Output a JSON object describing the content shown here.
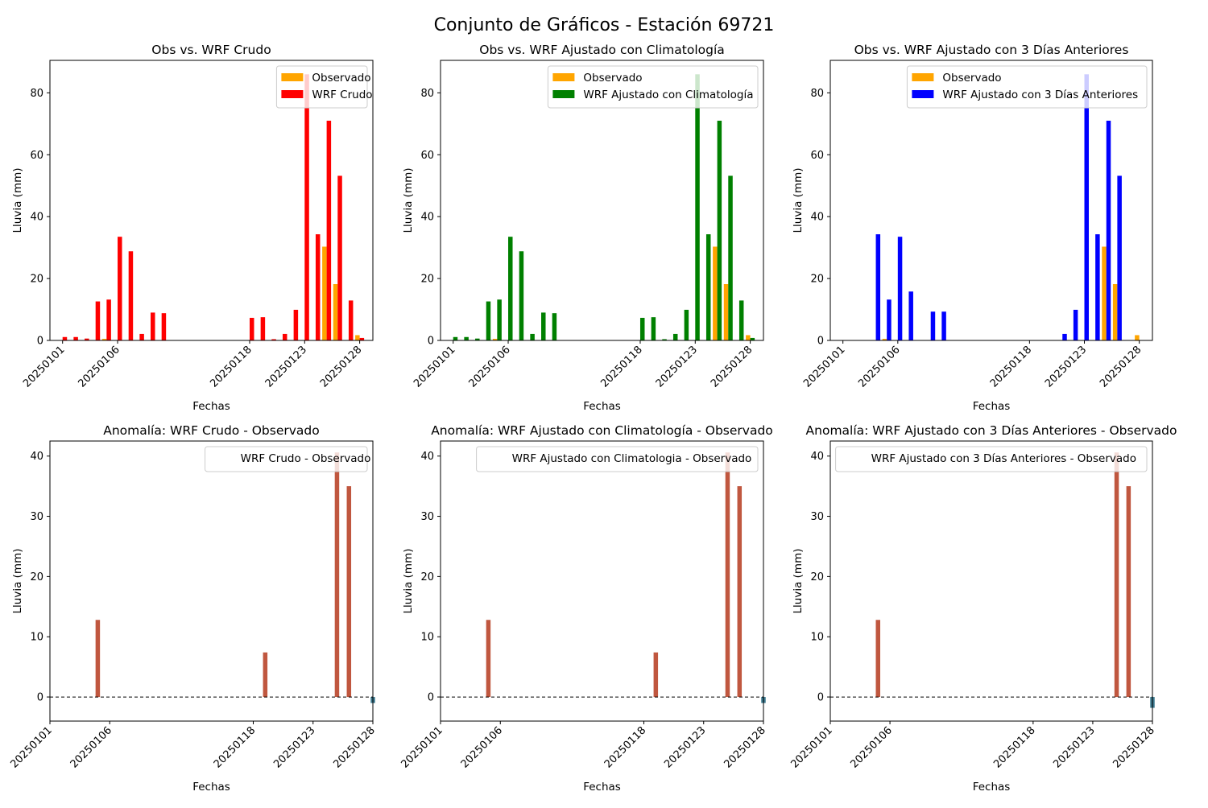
{
  "figure": {
    "title": "Conjunto de Gráficos - Estación 69721"
  },
  "colors": {
    "observado": "#ffa500",
    "wrf_crudo": "#ff0000",
    "wrf_clim": "#008000",
    "wrf_3dias": "#0000ff",
    "anom_pos": "#c0573f",
    "anom_neg": "#3d7a8f",
    "zero_line": "#000000"
  },
  "chart_data": [
    {
      "type": "bar",
      "panel": "top-left",
      "title": "Obs vs. WRF Crudo",
      "xlabel": "Fechas",
      "ylabel": "Lluvia (mm)",
      "x": [
        "20250101",
        "20250102",
        "20250103",
        "20250104",
        "20250105",
        "20250106",
        "20250107",
        "20250108",
        "20250109",
        "20250110",
        "20250118",
        "20250119",
        "20250120",
        "20250121",
        "20250122",
        "20250123",
        "20250124",
        "20250125",
        "20250126",
        "20250127",
        "20250128"
      ],
      "xticks": [
        "20250101",
        "20250106",
        "20250118",
        "20250123",
        "20250128"
      ],
      "yticks": [
        0,
        20,
        40,
        60,
        80
      ],
      "ylim": [
        0,
        90.5
      ],
      "legend": "top-right",
      "series": [
        {
          "name": "Observado",
          "color_key": "observado",
          "values": [
            0,
            0,
            0,
            0,
            0.5,
            0,
            0,
            0,
            0,
            0,
            0,
            0,
            0,
            0,
            0,
            0,
            0,
            30.3,
            18.2,
            0,
            1.7
          ]
        },
        {
          "name": "WRF Crudo",
          "color_key": "wrf_crudo",
          "values": [
            1.1,
            1.1,
            0.6,
            12.6,
            13.2,
            33.5,
            28.8,
            2.1,
            9.0,
            8.8,
            7.3,
            7.5,
            0.4,
            2.1,
            9.9,
            86.0,
            34.3,
            71.0,
            53.2,
            12.9,
            0.8
          ]
        }
      ]
    },
    {
      "type": "bar",
      "panel": "top-middle",
      "title": "Obs vs. WRF Ajustado con Climatología",
      "xlabel": "Fechas",
      "ylabel": "Lluvia (mm)",
      "x": [
        "20250101",
        "20250102",
        "20250103",
        "20250104",
        "20250105",
        "20250106",
        "20250107",
        "20250108",
        "20250109",
        "20250110",
        "20250118",
        "20250119",
        "20250120",
        "20250121",
        "20250122",
        "20250123",
        "20250124",
        "20250125",
        "20250126",
        "20250127",
        "20250128"
      ],
      "xticks": [
        "20250101",
        "20250106",
        "20250118",
        "20250123",
        "20250128"
      ],
      "yticks": [
        0,
        20,
        40,
        60,
        80
      ],
      "ylim": [
        0,
        90.5
      ],
      "legend": "top-right",
      "series": [
        {
          "name": "Observado",
          "color_key": "observado",
          "values": [
            0,
            0,
            0,
            0,
            0.5,
            0,
            0,
            0,
            0,
            0,
            0,
            0,
            0,
            0,
            0,
            0,
            0,
            30.3,
            18.2,
            0,
            1.7
          ]
        },
        {
          "name": "WRF Ajustado con Climatología",
          "color_key": "wrf_clim",
          "values": [
            1.1,
            1.1,
            0.6,
            12.6,
            13.2,
            33.5,
            28.8,
            2.1,
            9.0,
            8.8,
            7.3,
            7.5,
            0.4,
            2.1,
            9.9,
            86.0,
            34.3,
            71.0,
            53.2,
            12.9,
            0.8
          ]
        }
      ]
    },
    {
      "type": "bar",
      "panel": "top-right",
      "title": "Obs vs. WRF Ajustado con 3 Días Anteriores",
      "xlabel": "Fechas",
      "ylabel": "Lluvia (mm)",
      "x": [
        "20250101",
        "20250102",
        "20250103",
        "20250104",
        "20250105",
        "20250106",
        "20250107",
        "20250108",
        "20250109",
        "20250110",
        "20250118",
        "20250119",
        "20250120",
        "20250121",
        "20250122",
        "20250123",
        "20250124",
        "20250125",
        "20250126",
        "20250127",
        "20250128"
      ],
      "xticks": [
        "20250101",
        "20250106",
        "20250118",
        "20250123",
        "20250128"
      ],
      "yticks": [
        0,
        20,
        40,
        60,
        80
      ],
      "ylim": [
        0,
        90.5
      ],
      "legend": "top-right",
      "series": [
        {
          "name": "Observado",
          "color_key": "observado",
          "values": [
            0,
            0,
            0,
            0,
            0.5,
            0,
            0,
            0,
            0,
            0,
            0,
            0,
            0,
            0,
            0,
            0,
            0,
            30.3,
            18.2,
            0,
            1.7
          ]
        },
        {
          "name": "WRF Ajustado con 3 Días Anteriores",
          "color_key": "wrf_3dias",
          "values": [
            0,
            0,
            0,
            34.3,
            13.2,
            33.5,
            15.8,
            0,
            9.3,
            9.3,
            0,
            0,
            0,
            2.1,
            9.9,
            86.0,
            34.3,
            71.0,
            53.2,
            0,
            0
          ]
        }
      ]
    },
    {
      "type": "bar",
      "panel": "bottom-left",
      "title": "Anomalía: WRF Crudo - Observado",
      "xlabel": "Fechas",
      "ylabel": "Lluvia (mm)",
      "x": [
        "20250101",
        "20250102",
        "20250103",
        "20250104",
        "20250105",
        "20250106",
        "20250107",
        "20250108",
        "20250109",
        "20250110",
        "20250118",
        "20250119",
        "20250120",
        "20250121",
        "20250122",
        "20250123",
        "20250124",
        "20250125",
        "20250126",
        "20250127",
        "20250128"
      ],
      "xticks": [
        "20250101",
        "20250106",
        "20250118",
        "20250123",
        "20250128"
      ],
      "yticks": [
        0,
        10,
        20,
        30,
        40
      ],
      "ylim": [
        -4,
        42.5
      ],
      "legend": "top-right",
      "reference_line": 0,
      "series": [
        {
          "name": "WRF Crudo - Observado",
          "values": [
            null,
            null,
            null,
            null,
            12.8,
            null,
            null,
            null,
            null,
            null,
            null,
            7.4,
            null,
            null,
            null,
            null,
            null,
            40.6,
            35.0,
            null,
            -1.0
          ]
        }
      ]
    },
    {
      "type": "bar",
      "panel": "bottom-middle",
      "title": "Anomalía: WRF Ajustado con Climatología - Observado",
      "xlabel": "Fechas",
      "ylabel": "Lluvia (mm)",
      "x": [
        "20250101",
        "20250102",
        "20250103",
        "20250104",
        "20250105",
        "20250106",
        "20250107",
        "20250108",
        "20250109",
        "20250110",
        "20250118",
        "20250119",
        "20250120",
        "20250121",
        "20250122",
        "20250123",
        "20250124",
        "20250125",
        "20250126",
        "20250127",
        "20250128"
      ],
      "xticks": [
        "20250101",
        "20250106",
        "20250118",
        "20250123",
        "20250128"
      ],
      "yticks": [
        0,
        10,
        20,
        30,
        40
      ],
      "ylim": [
        -4,
        42.5
      ],
      "legend": "top-right",
      "reference_line": 0,
      "series": [
        {
          "name": "WRF Ajustado con Climatologia - Observado",
          "values": [
            null,
            null,
            null,
            null,
            12.8,
            null,
            null,
            null,
            null,
            null,
            null,
            7.4,
            null,
            null,
            null,
            null,
            null,
            40.6,
            35.0,
            null,
            -1.0
          ]
        }
      ]
    },
    {
      "type": "bar",
      "panel": "bottom-right",
      "title": "Anomalía: WRF Ajustado con 3 Días Anteriores - Observado",
      "xlabel": "Fechas",
      "ylabel": "Lluvia (mm)",
      "x": [
        "20250101",
        "20250102",
        "20250103",
        "20250104",
        "20250105",
        "20250106",
        "20250107",
        "20250108",
        "20250109",
        "20250110",
        "20250118",
        "20250119",
        "20250120",
        "20250121",
        "20250122",
        "20250123",
        "20250124",
        "20250125",
        "20250126",
        "20250127",
        "20250128"
      ],
      "xticks": [
        "20250101",
        "20250106",
        "20250118",
        "20250123",
        "20250128"
      ],
      "yticks": [
        0,
        10,
        20,
        30,
        40
      ],
      "ylim": [
        -4,
        42.5
      ],
      "legend": "top-right",
      "reference_line": 0,
      "series": [
        {
          "name": "WRF Ajustado con 3 Días Anteriores - Observado",
          "values": [
            null,
            null,
            null,
            null,
            12.8,
            null,
            null,
            null,
            null,
            null,
            null,
            null,
            null,
            null,
            null,
            null,
            null,
            40.6,
            35.0,
            null,
            -1.8
          ]
        }
      ]
    }
  ]
}
